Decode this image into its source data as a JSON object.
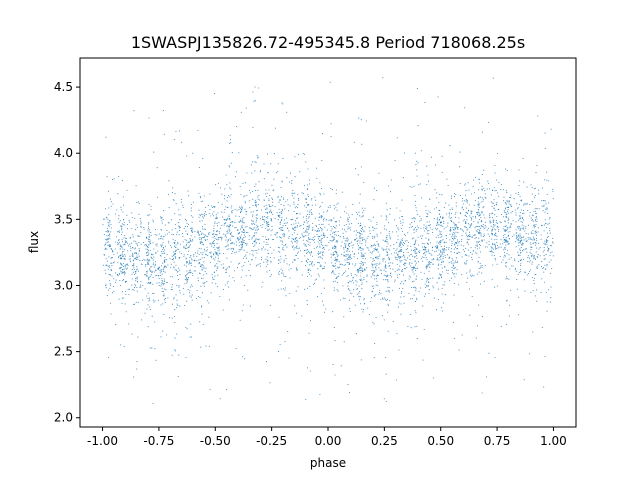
{
  "chart_data": {
    "type": "scatter",
    "title": "1SWASPJ135826.72-495345.8 Period 718068.25s",
    "xlabel": "phase",
    "ylabel": "flux",
    "xlim": [
      -1.1,
      1.1
    ],
    "ylim": [
      1.93,
      4.72
    ],
    "xticks": [
      "-1.00",
      "-0.75",
      "-0.50",
      "-0.25",
      "0.00",
      "0.25",
      "0.50",
      "0.75",
      "1.00"
    ],
    "yticks": [
      "2.0",
      "2.5",
      "3.0",
      "3.5",
      "4.0",
      "4.5"
    ],
    "grid": false,
    "legend": "none",
    "point_color": "#1f77b4",
    "series": [
      {
        "x_range": [
          -1.0,
          1.0
        ],
        "profile_x": [
          -1.0,
          -0.9,
          -0.8,
          -0.7,
          -0.6,
          -0.5,
          -0.4,
          -0.3,
          -0.2,
          -0.1,
          0.0,
          0.1,
          0.2,
          0.3,
          0.4,
          0.5,
          0.6,
          0.7,
          0.8,
          0.9,
          1.0
        ],
        "profile_y": [
          3.32,
          3.22,
          3.17,
          3.18,
          3.26,
          3.33,
          3.42,
          3.47,
          3.44,
          3.38,
          3.32,
          3.22,
          3.17,
          3.18,
          3.26,
          3.33,
          3.42,
          3.47,
          3.44,
          3.38,
          3.32
        ],
        "spread": 0.18,
        "y_min_seen": 2.07,
        "y_max_seen": 4.6
      }
    ]
  }
}
